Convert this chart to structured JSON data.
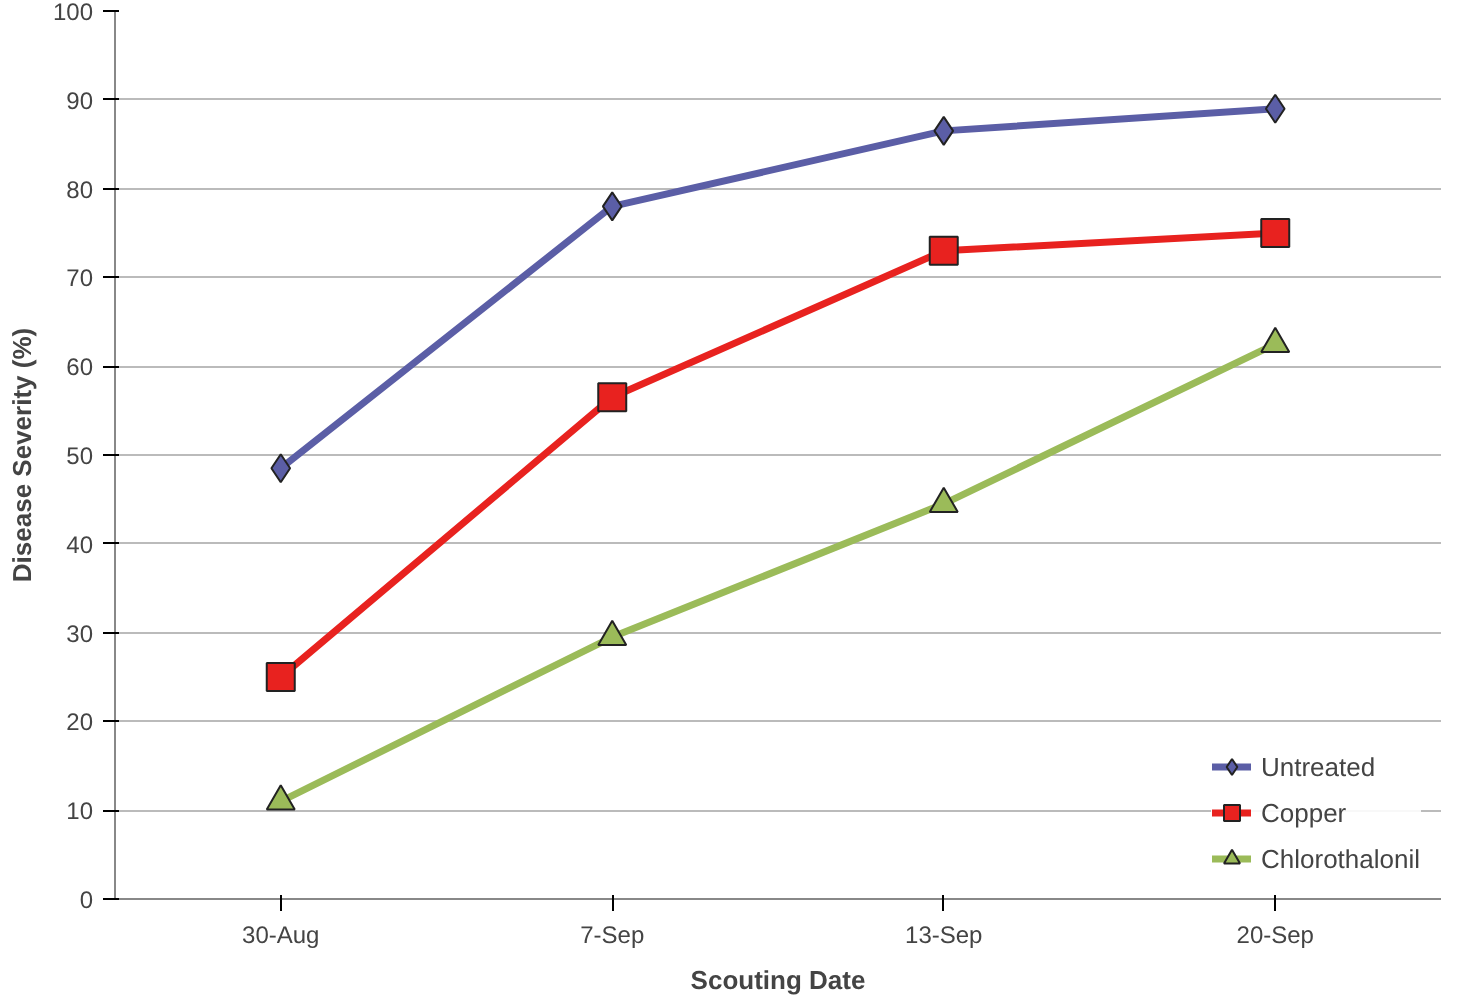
{
  "chart_data": {
    "type": "line",
    "xlabel": "Scouting Date",
    "ylabel": "Disease Severity (%)",
    "categories": [
      "30-Aug",
      "7-Sep",
      "13-Sep",
      "20-Sep"
    ],
    "series": [
      {
        "name": "Untreated",
        "color": "#5b5ea6",
        "marker": "diamond",
        "values": [
          48.5,
          78,
          86.5,
          89
        ]
      },
      {
        "name": "Copper",
        "color": "#e8221f",
        "marker": "square",
        "values": [
          25,
          56.5,
          73,
          75
        ]
      },
      {
        "name": "Chlorothalonil",
        "color": "#9bbb59",
        "marker": "triangle",
        "values": [
          11,
          29.5,
          44.5,
          62.5
        ]
      }
    ],
    "ylim": [
      0,
      100
    ],
    "yticks": [
      0,
      10,
      20,
      30,
      40,
      50,
      60,
      70,
      80,
      90,
      100
    ],
    "grid": "y",
    "legend": "bottom right",
    "line_style": "solid"
  }
}
